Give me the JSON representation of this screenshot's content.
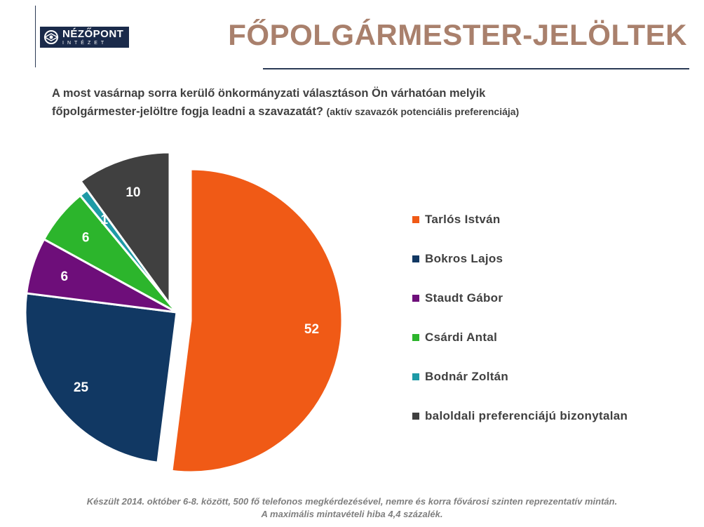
{
  "logo": {
    "name": "NÉZŐPONT",
    "sub": "INTÉZET"
  },
  "title": "FŐPOLGÁRMESTER-JELÖLTEK",
  "question": {
    "line1": "A most vasárnap sorra kerülő önkormányzati választáson Ön várhatóan melyik",
    "line2": "főpolgármester-jelöltre  fogja leadni a szavazatát?",
    "note": "(aktív szavazók potenciális preferenciája)"
  },
  "chart_data": {
    "type": "pie",
    "slices": [
      {
        "label": "Tarlós István",
        "value": 52,
        "color": "#f05a16"
      },
      {
        "label": "Bokros Lajos",
        "value": 25,
        "color": "#113863"
      },
      {
        "label": "Staudt Gábor",
        "value": 6,
        "color": "#6e0e7a"
      },
      {
        "label": "Csárdi Antal",
        "value": 6,
        "color": "#2cb52c"
      },
      {
        "label": "Bodnár Zoltán",
        "value": 1,
        "color": "#1e9aa6"
      },
      {
        "label": "baloldali preferenciájú bizonytalan",
        "value": 10,
        "color": "#404040"
      }
    ],
    "legend_position": "right"
  },
  "footer": {
    "line1": "Készült 2014. október 6-8. között, 500 fő telefonos megkérdezésével,  nemre és korra fővárosi szinten reprezentatív mintán.",
    "line2": "A maximális mintavételi hiba 4,4 százalék."
  }
}
